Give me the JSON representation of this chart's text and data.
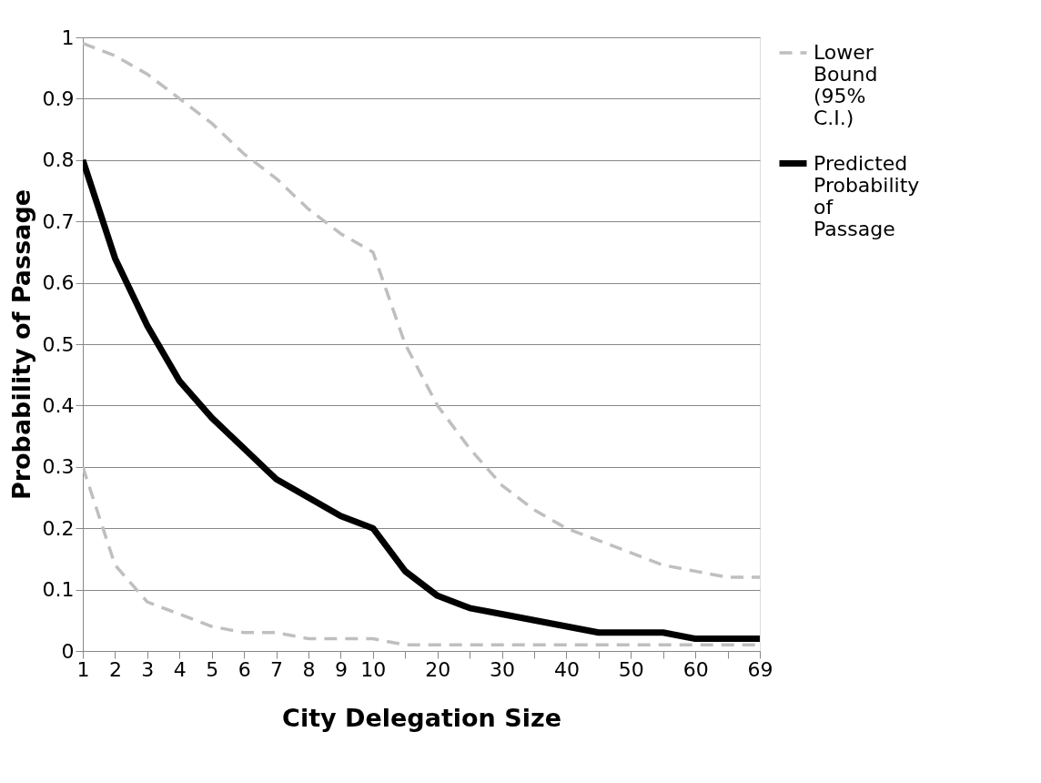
{
  "chart_data": {
    "type": "line",
    "xlabel": "City Delegation Size",
    "ylabel": "Probability of Passage",
    "categories": [
      "1",
      "2",
      "3",
      "4",
      "5",
      "6",
      "7",
      "8",
      "9",
      "10",
      null,
      "20",
      null,
      "30",
      null,
      "40",
      null,
      "50",
      null,
      "60",
      null,
      "69"
    ],
    "series": [
      {
        "name": "Lower Bound (95% C.I.)",
        "color": "#bfbfbf",
        "line_style": "dashed",
        "values": [
          0.3,
          0.14,
          0.08,
          0.06,
          0.04,
          0.03,
          0.03,
          0.02,
          0.02,
          0.02,
          0.01,
          0.01,
          0.01,
          0.01,
          0.01,
          0.01,
          0.01,
          0.01,
          0.01,
          0.01,
          0.01,
          0.01
        ]
      },
      {
        "color": "#bfbfbf",
        "line_style": "dashed",
        "values": [
          0.99,
          0.97,
          0.94,
          0.9,
          0.86,
          0.81,
          0.77,
          0.72,
          0.68,
          0.65,
          0.5,
          0.4,
          0.33,
          0.27,
          0.23,
          0.2,
          0.18,
          0.16,
          0.14,
          0.13,
          0.12,
          0.12
        ]
      },
      {
        "name": "Predicted Probability of Passage",
        "color": "#000000",
        "line_style": "solid",
        "values": [
          0.8,
          0.64,
          0.53,
          0.44,
          0.38,
          0.33,
          0.28,
          0.25,
          0.22,
          0.2,
          0.13,
          0.09,
          0.07,
          0.06,
          0.05,
          0.04,
          0.03,
          0.03,
          0.03,
          0.02,
          0.02,
          0.02
        ]
      }
    ],
    "ylim": [
      0,
      1
    ],
    "yticks": [
      0,
      0.1,
      0.2,
      0.3,
      0.4,
      0.5,
      0.6,
      0.7,
      0.8,
      0.9,
      1
    ],
    "grid": "y",
    "legend": "right",
    "marker": "none"
  }
}
